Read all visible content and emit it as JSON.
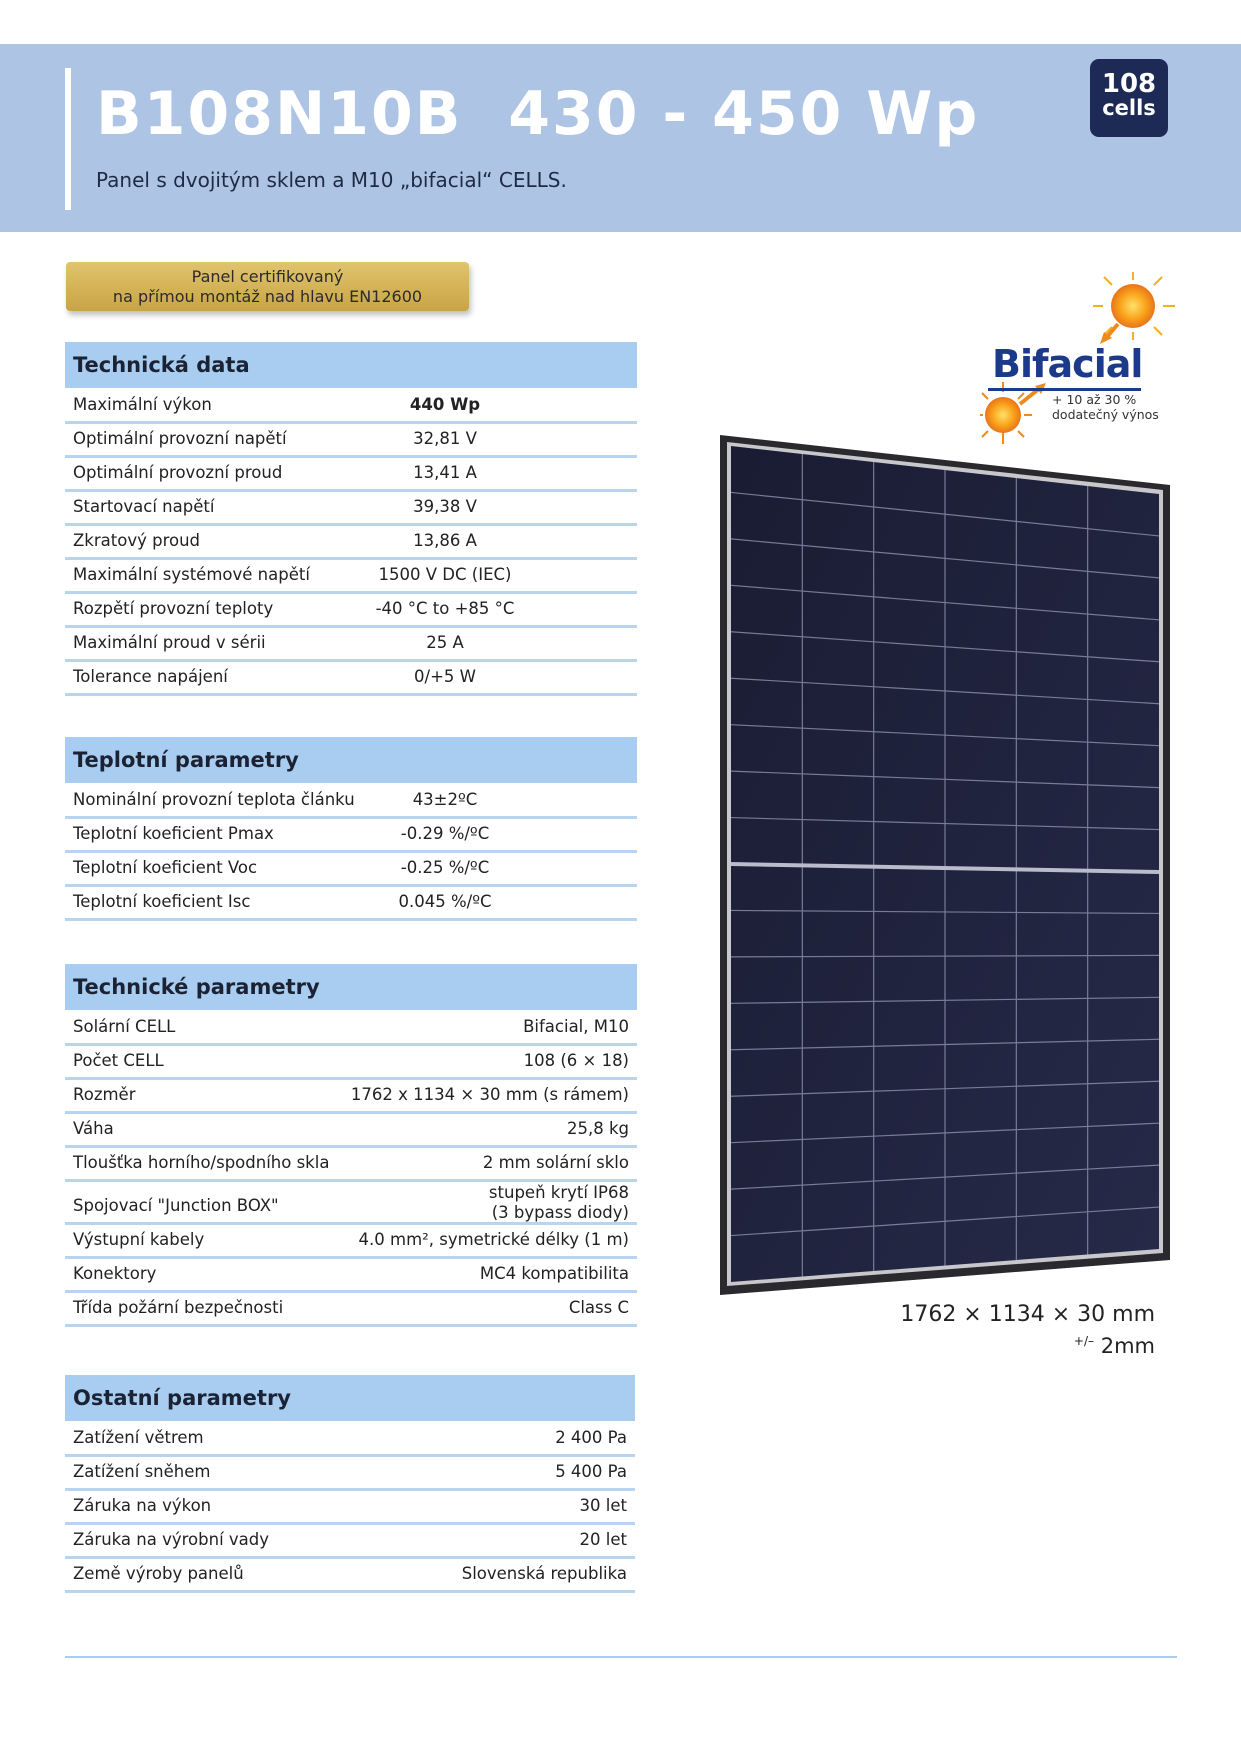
{
  "header": {
    "title": "B108N10B  430 - 450 Wp",
    "subtitle": "Panel s dvojitým sklem a M10 „bifacial“ CELLS.",
    "badge_number": "108",
    "badge_text": "cells"
  },
  "cert": {
    "line1": "Panel certifikovaný",
    "line2": "na přímou montáž nad hlavu EN12600"
  },
  "bifacial_logo": {
    "word": "Bifacial",
    "line1": "+ 10 až 30 %",
    "line2": "dodatečný výnos"
  },
  "sections": [
    {
      "title": "Technická data",
      "rows": [
        {
          "k": "Maximální výkon",
          "v": "440 Wp"
        },
        {
          "k": "Optimální provozní napětí",
          "v": "32,81 V"
        },
        {
          "k": "Optimální provozní proud",
          "v": "13,41 A"
        },
        {
          "k": "Startovací napětí",
          "v": "39,38 V"
        },
        {
          "k": "Zkratový proud",
          "v": "13,86 A"
        },
        {
          "k": "Maximální systémové napětí",
          "v": "1500 V DC (IEC)"
        },
        {
          "k": "Rozpětí provozní teploty",
          "v": "-40 °C to +85 °C"
        },
        {
          "k": "Maximální proud v sérii",
          "v": "25 A"
        },
        {
          "k": "Tolerance napájení",
          "v": "0/+5 W"
        }
      ]
    },
    {
      "title": "Teplotní parametry",
      "rows": [
        {
          "k": "Nominální provozní teplota článku",
          "v": "43±2ºC"
        },
        {
          "k": "Teplotní koeficient Pmax",
          "v": "-0.29 %/ºC"
        },
        {
          "k": "Teplotní koeficient Voc",
          "v": "-0.25 %/ºC"
        },
        {
          "k": "Teplotní koeficient Isc",
          "v": "0.045 %/ºC"
        }
      ]
    },
    {
      "title": "Technické parametry",
      "rows": [
        {
          "k": "Solární CELL",
          "v": "Bifacial, M10"
        },
        {
          "k": "Počet CELL",
          "v": "108 (6 × 18)"
        },
        {
          "k": "Rozměr",
          "v": "1762 x 1134 × 30 mm (s rámem)"
        },
        {
          "k": "Váha",
          "v": "25,8 kg"
        },
        {
          "k": "Tloušťka horního/spodního skla",
          "v": "2 mm solární sklo"
        },
        {
          "k": "Spojovací \"Junction BOX\"",
          "v1": "stupeň krytí IP68",
          "v2": "(3 bypass diody)"
        },
        {
          "k": "Výstupní kabely",
          "v": "4.0 mm², symetrické délky (1 m)"
        },
        {
          "k": "Konektory",
          "v": "MC4 kompatibilita"
        },
        {
          "k": "Třída požární bezpečnosti",
          "v": "Class C"
        }
      ]
    },
    {
      "title": "Ostatní parametry",
      "rows": [
        {
          "k": "Zatížení větrem",
          "v": "2 400 Pa"
        },
        {
          "k": "Zatížení sněhem",
          "v": "5 400 Pa"
        },
        {
          "k": "Záruka na výkon",
          "v": "30 let"
        },
        {
          "k": "Záruka na výrobní vady",
          "v": "20 let"
        },
        {
          "k": "Země výroby panelů",
          "v": "Slovenská republika"
        }
      ]
    }
  ],
  "dimensions": {
    "size": "1762 × 1134 × 30 mm",
    "tol_sign": "+/–",
    "tol_value": "2mm"
  },
  "colors": {
    "header_band": "#aec4e5",
    "section_head": "#a9cdf0",
    "row_line": "#b9d4ef",
    "badge": "#1c2a55",
    "gold": "#d4b45a"
  }
}
